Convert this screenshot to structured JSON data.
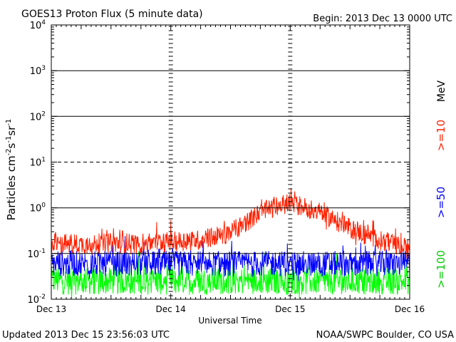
{
  "chart_data": {
    "type": "line",
    "title": "GOES13 Proton Flux (5 minute data)",
    "begin_label": "Begin: 2013 Dec 13 0000 UTC",
    "xlabel": "Universal Time",
    "ylabel_parts": [
      "Particles cm",
      "-2",
      "s",
      "-1",
      "sr",
      "-1"
    ],
    "yscale": "log",
    "ylim": [
      0.01,
      10000
    ],
    "xlim_days": [
      0,
      3
    ],
    "x_tick_labels": [
      "Dec 13",
      "Dec 14",
      "Dec 15",
      "Dec 16"
    ],
    "y_tick_exponents": [
      -2,
      -1,
      0,
      1,
      2,
      3,
      4
    ],
    "y_tick_base": "10",
    "thresholds": [
      {
        "value": 0.1,
        "style": "solid"
      },
      {
        "value": 1,
        "style": "solid"
      },
      {
        "value": 10,
        "style": "dashed"
      },
      {
        "value": 100,
        "style": "solid"
      },
      {
        "value": 1000,
        "style": "solid"
      }
    ],
    "unit_label": "MeV",
    "series": [
      {
        "name": ">=10",
        "color": "#ff2000",
        "x_days": [
          0,
          0.25,
          0.5,
          0.75,
          1.0,
          1.25,
          1.5,
          1.75,
          2.0,
          2.25,
          2.5,
          2.75,
          3.0
        ],
        "values": [
          0.17,
          0.16,
          0.17,
          0.17,
          0.18,
          0.2,
          0.28,
          0.8,
          1.3,
          0.8,
          0.35,
          0.2,
          0.12
        ]
      },
      {
        "name": ">=50",
        "color": "#0000ff",
        "x_days": [
          0,
          3
        ],
        "values": [
          0.06,
          0.06
        ]
      },
      {
        "name": ">=100",
        "color": "#00ff00",
        "x_days": [
          0,
          3
        ],
        "values": [
          0.025,
          0.025
        ]
      }
    ]
  },
  "footer": {
    "updated": "Updated 2013 Dec 15 23:56:03 UTC",
    "source": "NOAA/SWPC Boulder, CO USA"
  }
}
